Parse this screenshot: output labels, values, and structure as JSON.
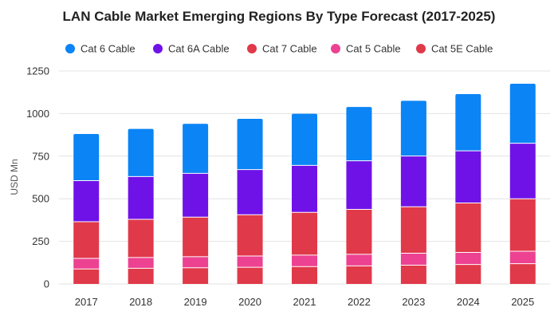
{
  "chart_data": {
    "type": "bar",
    "stacked": true,
    "title": "LAN Cable Market Emerging Regions By Type Forecast (2017-2025)",
    "xlabel": "",
    "ylabel": "USD Mn",
    "ylim": [
      0,
      1250
    ],
    "yticks": [
      0,
      250,
      500,
      750,
      1000,
      1250
    ],
    "grid": true,
    "legend_position": "top",
    "categories": [
      "2017",
      "2018",
      "2019",
      "2020",
      "2021",
      "2022",
      "2023",
      "2024",
      "2025"
    ],
    "series": [
      {
        "name": "Cat 5E Cable",
        "color": "#e0394a",
        "values": [
          88,
          92,
          95,
          98,
          102,
          106,
          110,
          114,
          119
        ]
      },
      {
        "name": "Cat 5 Cable",
        "color": "#ed4191",
        "values": [
          62,
          63,
          65,
          66,
          67,
          68,
          70,
          71,
          73
        ]
      },
      {
        "name": "Cat 7 Cable",
        "color": "#e0394a",
        "values": [
          215,
          224,
          232,
          242,
          251,
          264,
          273,
          290,
          308
        ]
      },
      {
        "name": "Cat 6A Cable",
        "color": "#6f12e8",
        "values": [
          241,
          251,
          257,
          265,
          276,
          285,
          298,
          306,
          326
        ]
      },
      {
        "name": "Cat 6 Cable",
        "color": "#0b84f5",
        "values": [
          274,
          280,
          291,
          298,
          303,
          316,
          324,
          333,
          349
        ]
      }
    ],
    "legend_order": [
      "Cat 6 Cable",
      "Cat 6A Cable",
      "Cat 7 Cable",
      "Cat 5 Cable",
      "Cat 5E Cable"
    ]
  }
}
